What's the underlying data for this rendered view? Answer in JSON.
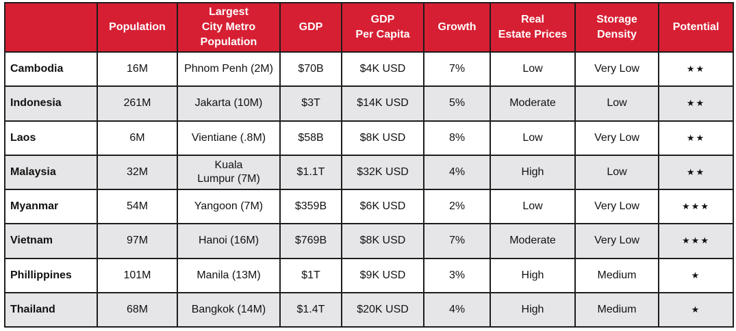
{
  "headers": [
    [
      ""
    ],
    [
      "Population"
    ],
    [
      "Largest",
      "City Metro",
      "Population"
    ],
    [
      "GDP"
    ],
    [
      "GDP",
      "Per Capita"
    ],
    [
      "Growth"
    ],
    [
      "Real",
      "Estate Prices"
    ],
    [
      "Storage",
      "Density"
    ],
    [
      "Potential"
    ]
  ],
  "header_color": "#d71f33",
  "row_stripe_color": "#e6e6e9",
  "rows": [
    {
      "country": "Cambodia",
      "population": "16M",
      "city": [
        "Phnom Penh (2M)"
      ],
      "gdp": "$70B",
      "gdp_per_capita": "$4K USD",
      "growth": "7%",
      "real_estate": "Low",
      "storage_density": "Very Low",
      "potential": "★★"
    },
    {
      "country": "Indonesia",
      "population": "261M",
      "city": [
        "Jakarta (10M)"
      ],
      "gdp": "$3T",
      "gdp_per_capita": "$14K USD",
      "growth": "5%",
      "real_estate": "Moderate",
      "storage_density": "Low",
      "potential": "★★"
    },
    {
      "country": "Laos",
      "population": "6M",
      "city": [
        "Vientiane (.8M)"
      ],
      "gdp": "$58B",
      "gdp_per_capita": "$8K USD",
      "growth": "8%",
      "real_estate": "Low",
      "storage_density": "Very Low",
      "potential": "★★"
    },
    {
      "country": "Malaysia",
      "population": "32M",
      "city": [
        "Kuala",
        "Lumpur (7M)"
      ],
      "gdp": "$1.1T",
      "gdp_per_capita": "$32K USD",
      "growth": "4%",
      "real_estate": "High",
      "storage_density": "Low",
      "potential": "★★"
    },
    {
      "country": "Myanmar",
      "population": "54M",
      "city": [
        "Yangoon (7M)"
      ],
      "gdp": "$359B",
      "gdp_per_capita": "$6K USD",
      "growth": "2%",
      "real_estate": "Low",
      "storage_density": "Very Low",
      "potential": "★★★"
    },
    {
      "country": "Vietnam",
      "population": "97M",
      "city": [
        "Hanoi (16M)"
      ],
      "gdp": "$769B",
      "gdp_per_capita": "$8K USD",
      "growth": "7%",
      "real_estate": "Moderate",
      "storage_density": "Very Low",
      "potential": "★★★"
    },
    {
      "country": "Phillippines",
      "population": "101M",
      "city": [
        "Manila (13M)"
      ],
      "gdp": "$1T",
      "gdp_per_capita": "$9K USD",
      "growth": "3%",
      "real_estate": "High",
      "storage_density": "Medium",
      "potential": "★"
    },
    {
      "country": "Thailand",
      "population": "68M",
      "city": [
        "Bangkok (14M)"
      ],
      "gdp": "$1.4T",
      "gdp_per_capita": "$20K USD",
      "growth": "4%",
      "real_estate": "High",
      "storage_density": "Medium",
      "potential": "★"
    }
  ]
}
